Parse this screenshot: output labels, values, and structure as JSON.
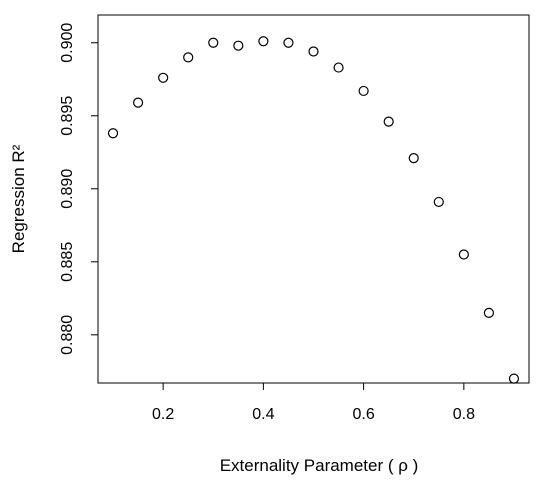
{
  "chart_data": {
    "type": "scatter",
    "title": "",
    "xlabel": "Externality Parameter ( ρ )",
    "ylabel": "Regression R²",
    "xlim": [
      0.07,
      0.93
    ],
    "ylim": [
      0.8767,
      0.9019
    ],
    "grid": false,
    "legend": "none",
    "x_ticks": [
      0.2,
      0.4,
      0.6,
      0.8
    ],
    "x_tick_labels": [
      "0.2",
      "0.4",
      "0.6",
      "0.8"
    ],
    "y_ticks": [
      0.88,
      0.885,
      0.89,
      0.895,
      0.9
    ],
    "y_tick_labels": [
      "0.880",
      "0.885",
      "0.890",
      "0.895",
      "0.900"
    ],
    "marker": "open-circle",
    "x": [
      0.1,
      0.15,
      0.2,
      0.25,
      0.3,
      0.35,
      0.4,
      0.45,
      0.5,
      0.55,
      0.6,
      0.65,
      0.7,
      0.75,
      0.8,
      0.85,
      0.9
    ],
    "y": [
      0.8938,
      0.8959,
      0.8976,
      0.899,
      0.9,
      0.8998,
      0.9001,
      0.9,
      0.8994,
      0.8983,
      0.8967,
      0.8946,
      0.8921,
      0.8891,
      0.8855,
      0.8815,
      0.877
    ]
  }
}
